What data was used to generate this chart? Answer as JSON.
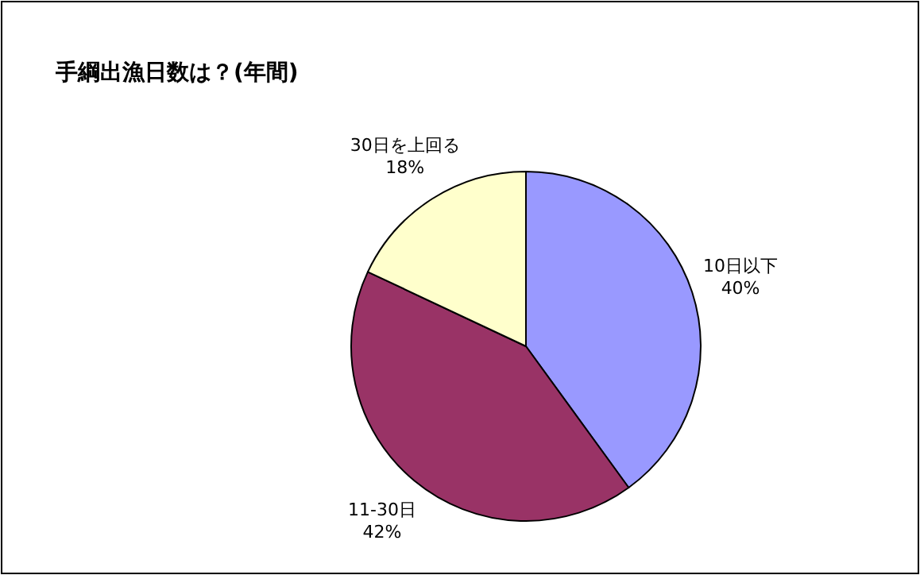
{
  "chart_data": {
    "type": "pie",
    "title": "手綱出漁日数は？(年間)",
    "categories": [
      "10日以下",
      "11-30日",
      "30日を上回る"
    ],
    "values": [
      40,
      42,
      18
    ],
    "value_labels": [
      "40%",
      "42%",
      "18%"
    ],
    "colors": [
      "#9999ff",
      "#993366",
      "#ffffcc"
    ]
  }
}
